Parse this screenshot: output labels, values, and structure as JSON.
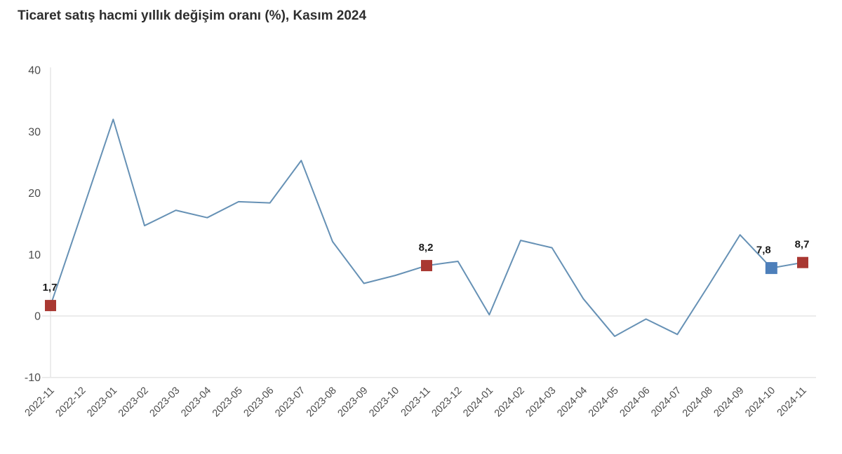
{
  "title": "Ticaret satış hacmi yıllık değişim oranı (%), Kasım 2024",
  "chart_data": {
    "type": "line",
    "title": "Ticaret satış hacmi yıllık değişim oranı (%), Kasım 2024",
    "categories": [
      "2022-11",
      "2022-12",
      "2023-01",
      "2023-02",
      "2023-03",
      "2023-04",
      "2023-05",
      "2023-06",
      "2023-07",
      "2023-08",
      "2023-09",
      "2023-10",
      "2023-11",
      "2023-12",
      "2024-01",
      "2024-02",
      "2024-03",
      "2024-04",
      "2024-05",
      "2024-06",
      "2024-07",
      "2024-08",
      "2024-09",
      "2024-10",
      "2024-11"
    ],
    "values": [
      1.7,
      16.8,
      32.0,
      14.7,
      17.2,
      16.0,
      18.6,
      18.4,
      25.3,
      12.1,
      5.3,
      6.6,
      8.2,
      8.9,
      0.2,
      12.3,
      11.1,
      2.8,
      -3.3,
      -0.5,
      -3.0,
      5.0,
      13.2,
      7.8,
      8.7
    ],
    "ylim": [
      -10,
      40
    ],
    "yticks": [
      40,
      30,
      20,
      10,
      0,
      -10
    ],
    "xlabel": "",
    "ylabel": "",
    "legend": "none",
    "grid": {
      "zero_line": true,
      "bottom_line": true,
      "other_gridlines": false
    },
    "highlights": [
      {
        "index": 0,
        "category": "2022-11",
        "value": 1.7,
        "label": "1,7",
        "color_key": "highlight_red"
      },
      {
        "index": 12,
        "category": "2023-11",
        "value": 8.2,
        "label": "8,2",
        "color_key": "highlight_red"
      },
      {
        "index": 23,
        "category": "2024-10",
        "value": 7.8,
        "label": "7,8",
        "color_key": "highlight_blue",
        "label_dx": -11
      },
      {
        "index": 24,
        "category": "2024-11",
        "value": 8.7,
        "label": "8,7",
        "color_key": "highlight_red"
      }
    ],
    "colors": {
      "line": "#6691b5",
      "highlight_red": "#a93832",
      "highlight_blue": "#4d7fba",
      "gridline": "#e6e6e6",
      "axis_line": "#d9d9d9",
      "tick_label": "#4d4d4d",
      "value_label": "#1a1a1a",
      "title": "#2e2e2e"
    }
  }
}
